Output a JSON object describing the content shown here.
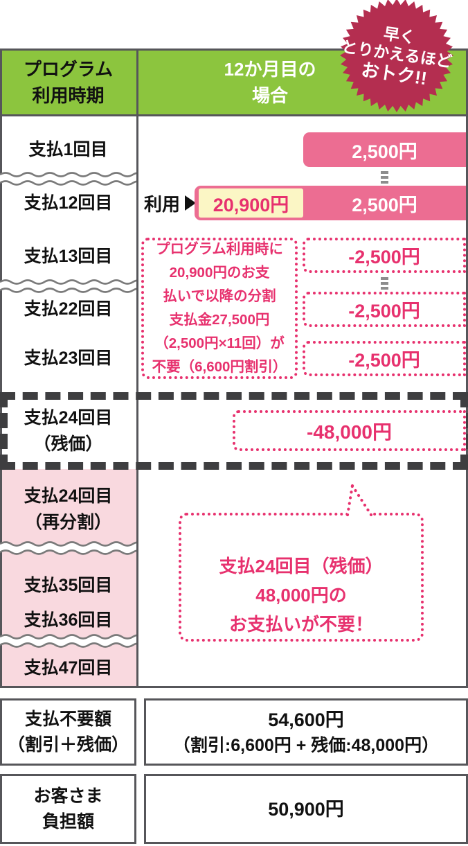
{
  "colors": {
    "green_header": "#8cc53e",
    "pink_bar": "#ec6d92",
    "deep_pink": "#e7316e",
    "yellow_highlight": "#fbf6c5",
    "light_pink_cell": "#f9d9df",
    "badge_crimson": "#b42e50",
    "border_gray": "#56565a",
    "dashed_dark": "#3e3e40"
  },
  "badge": {
    "line1": "早く",
    "line2": "とりかえるほど",
    "line3": "おトク!!"
  },
  "header": {
    "period_col_line1": "プログラム",
    "period_col_line2": "利用時期",
    "case_col_line1": "12か月目の",
    "case_col_line2": "場合"
  },
  "timeline": {
    "payment1": "支払1回目",
    "payment12": "支払12回目",
    "payment13": "支払13回目",
    "payment22": "支払22回目",
    "payment23": "支払23回目",
    "payment24_residual_line1": "支払24回目",
    "payment24_residual_line2": "（残価）",
    "payment24_resplit_line1": "支払24回目",
    "payment24_resplit_line2": "（再分割）",
    "payment35": "支払35回目",
    "payment36": "支払36回目",
    "payment47": "支払47回目",
    "bar1_amount": "2,500円",
    "usage_label": "利用",
    "usage_amount": "20,900円",
    "bar12_amount": "2,500円",
    "discount1": "-2,500円",
    "discount2": "-2,500円",
    "discount3": "-2,500円",
    "residual_discount": "-48,000円",
    "note_line1": "プログラム利用時に",
    "note_line2": "20,900円のお支",
    "note_line3": "払いで以降の分割",
    "note_line4": "支払金27,500円",
    "note_line5": "（2,500円×11回）が",
    "note_line6": "不要（6,600円割引）",
    "bubble_line1": "支払24回目（残価）",
    "bubble_line2": "48,000円の",
    "bubble_line3": "お支払いが不要！"
  },
  "summary": {
    "no_payment_label_line1": "支払不要額",
    "no_payment_label_line2": "（割引＋残価）",
    "no_payment_value_line1": "54,600円",
    "no_payment_value_line2": "（割引:6,600円 + 残価:48,000円）",
    "customer_label_line1": "お客さま",
    "customer_label_line2": "負担額",
    "customer_value": "50,900円"
  }
}
